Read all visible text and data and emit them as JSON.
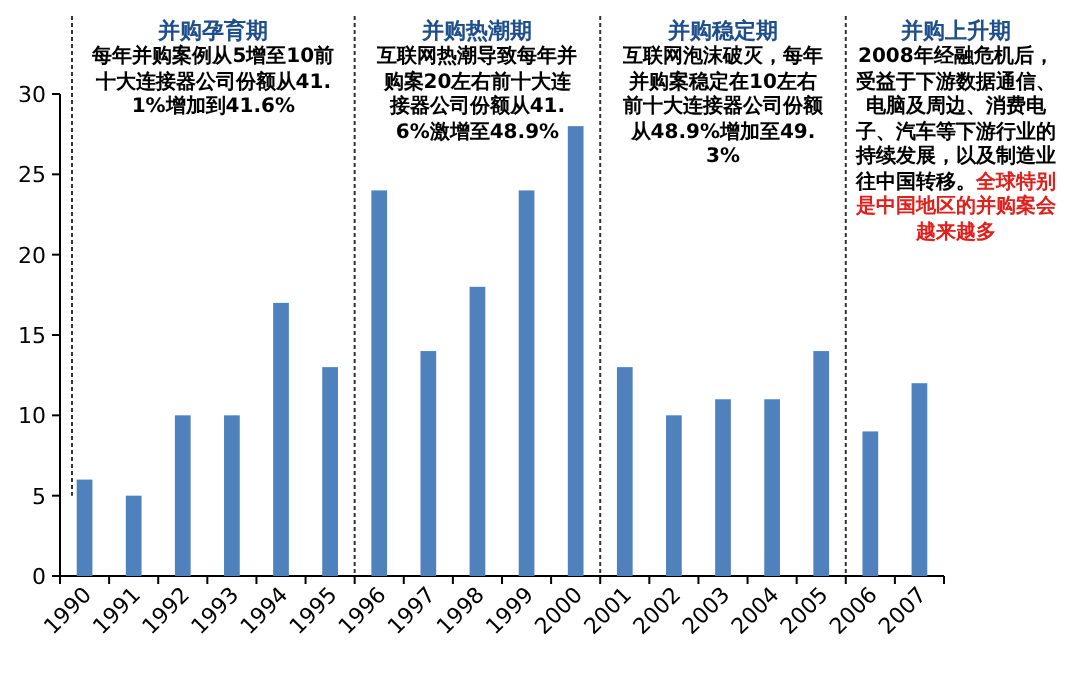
{
  "chart_data": {
    "type": "bar",
    "categories": [
      "1990",
      "1991",
      "1992",
      "1993",
      "1994",
      "1995",
      "1996",
      "1997",
      "1998",
      "1999",
      "2000",
      "2001",
      "2002",
      "2003",
      "2004",
      "2005",
      "2006",
      "2007"
    ],
    "values": [
      6,
      5,
      10,
      10,
      17,
      13,
      24,
      14,
      18,
      24,
      28,
      13,
      10,
      11,
      11,
      14,
      9,
      12
    ],
    "color": "#4f81bd",
    "ylim": [
      0,
      30
    ],
    "yticks": [
      0,
      5,
      10,
      15,
      20,
      25,
      30
    ],
    "ref_lines": [
      {
        "axis": "x",
        "value": "1990",
        "line_style": "dotted"
      },
      {
        "axis": "x",
        "value": "1996",
        "line_style": "dotted"
      },
      {
        "axis": "x",
        "value": "2001",
        "line_style": "dotted"
      },
      {
        "axis": "x",
        "value": "2006",
        "line_style": "dotted"
      }
    ],
    "annotations": [
      "并购孕育期",
      "每年并购案例从5增至10前十大连接器公司份额从41.1%增加到41.6%",
      "并购热潮期",
      "互联网热潮导致每年并购案20左右前十大连接器公司份额从41.6%激增至48.9%",
      "并购稳定期",
      "互联网泡沫破灭，每年并购案稳定在10左右前十大连接器公司份额从48.9%增加至49.3%",
      "并购上升期",
      "2008年经融危机后，受益于下游数据通信、电脑及周边、消费电子、汽车等下游行业的持续发展，以及制造业往中国转移。",
      "全球特别是中国地区的并购案会越来越多"
    ]
  }
}
